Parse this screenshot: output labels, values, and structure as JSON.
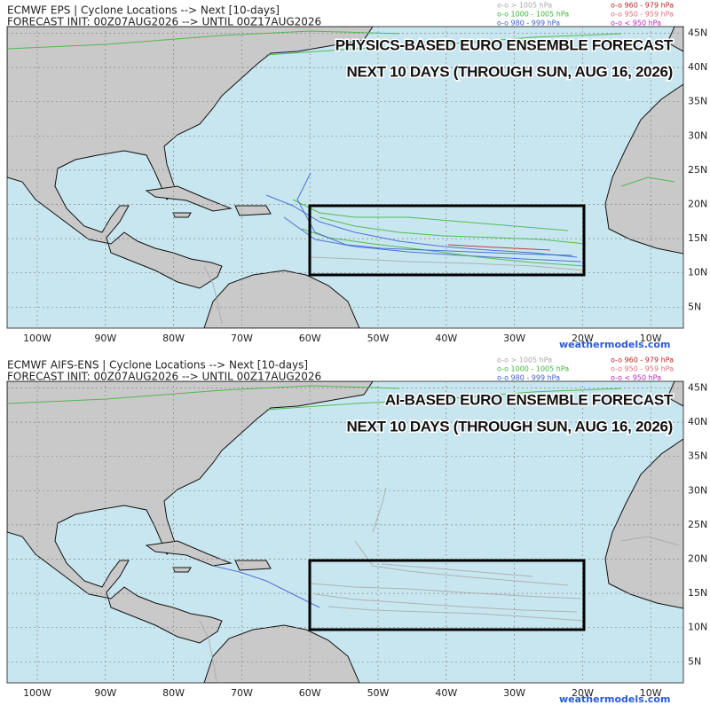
{
  "panels": [
    {
      "header": {
        "line1": "ECMWF EPS | Cyclone Locations --> Next [10-days]",
        "line2": "FORECAST INIT: 00Z07AUG2026 --> UNTIL 00Z17AUG2026"
      },
      "legend": [
        {
          "label": "o-o > 1005 hPa",
          "color": "#a8a8a8"
        },
        {
          "label": "o-o 1000 - 1005 hPa",
          "color": "#3cb43c"
        },
        {
          "label": "o-o 980 - 999 hPa",
          "color": "#3a5fd0"
        },
        {
          "label": "o-o 960 - 979 hPa",
          "color": "#c02020"
        },
        {
          "label": "o-o 950 - 959 hPa",
          "color": "#e06a7a"
        },
        {
          "label": "o-o < 950 hPa",
          "color": "#c020c0"
        }
      ],
      "overlay_title": [
        "PHYSICS-BASED EURO ENSEMBLE FORECAST",
        "NEXT 10 DAYS (THROUGH SUN, AUG 16, 2026)"
      ],
      "longitude_labels": [
        "100W",
        "90W",
        "80W",
        "70W",
        "60W",
        "50W",
        "40W",
        "30W",
        "20W",
        "10W"
      ],
      "latitude_labels": [
        "45N",
        "40N",
        "35N",
        "30N",
        "25N",
        "20N",
        "15N",
        "10N",
        "5N"
      ],
      "credit": "weathermodels.com"
    },
    {
      "header": {
        "line1": "ECMWF AIFS-ENS | Cyclone Locations --> Next [10-days]",
        "line2": "FORECAST INIT: 00Z07AUG2026 --> UNTIL 00Z17AUG2026"
      },
      "legend": [
        {
          "label": "o-o > 1005 hPa",
          "color": "#a8a8a8"
        },
        {
          "label": "o-o 1000 - 1005 hPa",
          "color": "#3cb43c"
        },
        {
          "label": "o-o 980 - 999 hPa",
          "color": "#3a5fd0"
        },
        {
          "label": "o-o 960 - 979 hPa",
          "color": "#c02020"
        },
        {
          "label": "o-o 950 - 959 hPa",
          "color": "#e06a7a"
        },
        {
          "label": "o-o < 950 hPa",
          "color": "#c020c0"
        }
      ],
      "overlay_title": [
        "AI-BASED EURO ENSEMBLE FORECAST",
        "NEXT 10 DAYS (THROUGH SUN, AUG 16, 2026)"
      ],
      "longitude_labels": [
        "100W",
        "90W",
        "80W",
        "70W",
        "60W",
        "50W",
        "40W",
        "30W",
        "20W",
        "10W"
      ],
      "latitude_labels": [
        "45N",
        "40N",
        "35N",
        "30N",
        "25N",
        "20N",
        "15N",
        "10N",
        "5N"
      ],
      "credit": "weathermodels.com"
    }
  ]
}
